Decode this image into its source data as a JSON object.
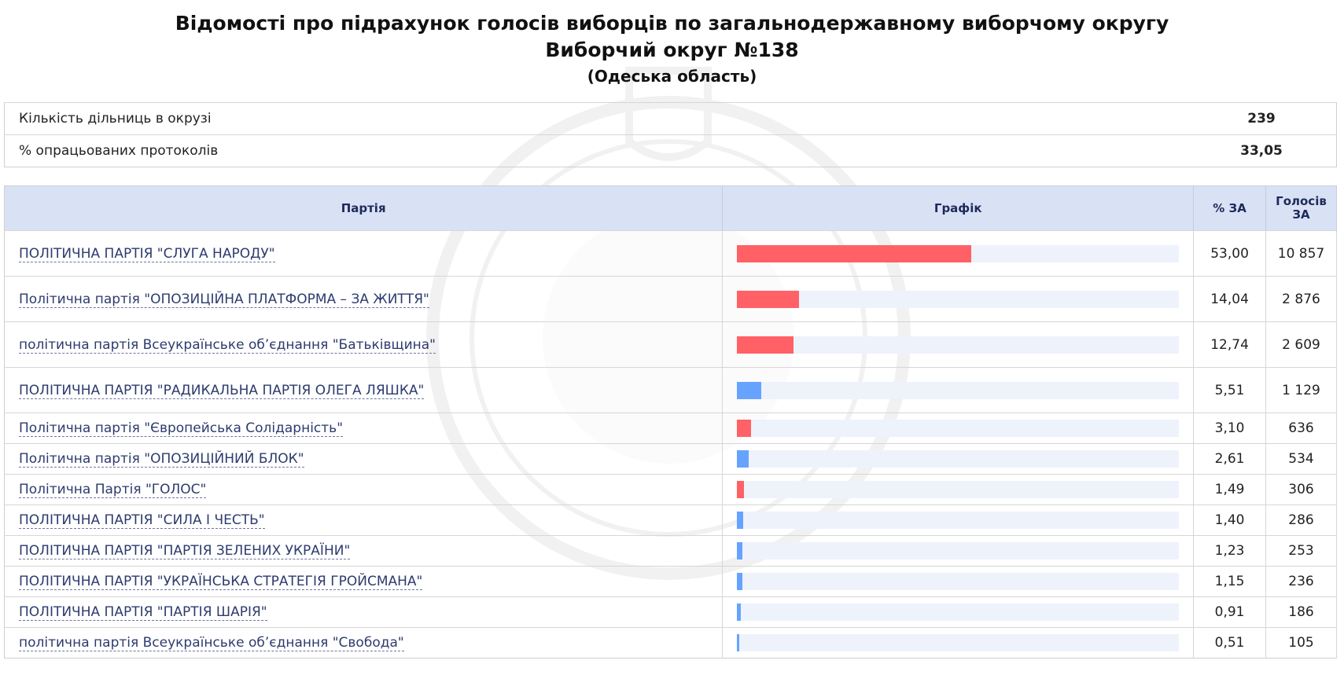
{
  "header": {
    "title": "Відомості про підрахунок голосів виборців по загальнодержавному виборчому округу",
    "district": "Виборчий округ №138",
    "region": "(Одеська область)"
  },
  "summary": [
    {
      "label": "Кількість дільниць в окрузі",
      "value": "239"
    },
    {
      "label": "% опрацьованих протоколів",
      "value": "33,05"
    }
  ],
  "table": {
    "columns": {
      "party": "Партія",
      "chart": "Графік",
      "pct": "% ЗА",
      "votes": "Голосів ЗА"
    }
  },
  "colors": {
    "red": "#ff6166",
    "blue": "#66a3ff",
    "header_bg": "#d9e2f5",
    "track": "#eef2fb"
  },
  "rows": [
    {
      "party": "ПОЛІТИЧНА ПАРТІЯ \"СЛУГА НАРОДУ\"",
      "pct": "53,00",
      "share": 53.0,
      "votes": "10 857",
      "color": "red",
      "height": 58
    },
    {
      "party": "Політична партія \"ОПОЗИЦІЙНА ПЛАТФОРМА – ЗА ЖИТТЯ\"",
      "pct": "14,04",
      "share": 14.04,
      "votes": "2 876",
      "color": "red",
      "height": 58
    },
    {
      "party": "політична партія Всеукраїнське об’єднання \"Батьківщина\"",
      "pct": "12,74",
      "share": 12.74,
      "votes": "2 609",
      "color": "red",
      "height": 58
    },
    {
      "party": "ПОЛІТИЧНА ПАРТІЯ \"РАДИКАЛЬНА ПАРТІЯ ОЛЕГА ЛЯШКА\"",
      "pct": "5,51",
      "share": 5.51,
      "votes": "1 129",
      "color": "blue",
      "height": 58
    },
    {
      "party": "Політична партія \"Європейська Солідарність\"",
      "pct": "3,10",
      "share": 3.1,
      "votes": "636",
      "color": "red",
      "height": 39
    },
    {
      "party": "Політична партія \"ОПОЗИЦІЙНИЙ БЛОК\"",
      "pct": "2,61",
      "share": 2.61,
      "votes": "534",
      "color": "blue",
      "height": 39
    },
    {
      "party": "Політична Партія \"ГОЛОС\"",
      "pct": "1,49",
      "share": 1.49,
      "votes": "306",
      "color": "red",
      "height": 39
    },
    {
      "party": "ПОЛІТИЧНА ПАРТІЯ \"СИЛА І ЧЕСТЬ\"",
      "pct": "1,40",
      "share": 1.4,
      "votes": "286",
      "color": "blue",
      "height": 39
    },
    {
      "party": "ПОЛІТИЧНА ПАРТІЯ \"ПАРТІЯ ЗЕЛЕНИХ УКРАЇНИ\"",
      "pct": "1,23",
      "share": 1.23,
      "votes": "253",
      "color": "blue",
      "height": 39
    },
    {
      "party": "ПОЛІТИЧНА ПАРТІЯ \"УКРАЇНСЬКА СТРАТЕГІЯ ГРОЙСМАНА\"",
      "pct": "1,15",
      "share": 1.15,
      "votes": "236",
      "color": "blue",
      "height": 39
    },
    {
      "party": "ПОЛІТИЧНА ПАРТІЯ \"ПАРТІЯ ШАРІЯ\"",
      "pct": "0,91",
      "share": 0.91,
      "votes": "186",
      "color": "blue",
      "height": 39
    },
    {
      "party": "політична партія Всеукраїнське об’єднання \"Свобода\"",
      "pct": "0,51",
      "share": 0.51,
      "votes": "105",
      "color": "blue",
      "height": 39
    }
  ]
}
